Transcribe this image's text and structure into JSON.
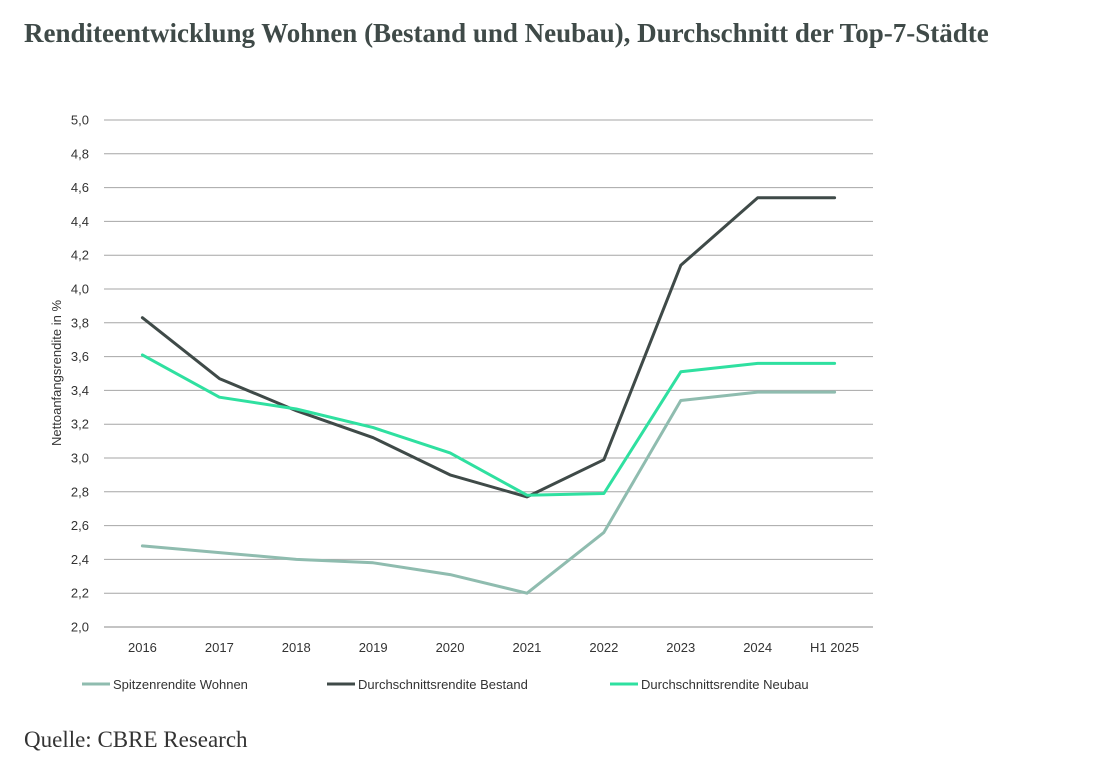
{
  "title": "Renditeentwicklung Wohnen (Bestand und Neubau), Durchschnitt der Top-7-Städte",
  "source": "Quelle: CBRE Research",
  "chart_data": {
    "type": "line",
    "title": "",
    "xlabel": "",
    "ylabel": "Nettoanfangsrendite in %",
    "ylim": [
      2.0,
      5.0
    ],
    "ytick_step": 0.2,
    "decimal_separator": ",",
    "grid": true,
    "legend_position": "bottom",
    "categories": [
      "2016",
      "2017",
      "2018",
      "2019",
      "2020",
      "2021",
      "2022",
      "2023",
      "2024",
      "H1 2025"
    ],
    "series": [
      {
        "name": "Spitzenrendite Wohnen",
        "color": "#8fbcaf",
        "values": [
          2.48,
          2.44,
          2.4,
          2.38,
          2.31,
          2.2,
          2.56,
          3.34,
          3.39,
          3.39
        ]
      },
      {
        "name": "Durchschnittsrendite Bestand",
        "color": "#3f4a48",
        "values": [
          3.83,
          3.47,
          3.28,
          3.12,
          2.9,
          2.77,
          2.99,
          4.14,
          4.54,
          4.54
        ]
      },
      {
        "name": "Durchschnittsrendite Neubau",
        "color": "#2fe0a0",
        "values": [
          3.61,
          3.36,
          3.29,
          3.18,
          3.03,
          2.78,
          2.79,
          3.51,
          3.56,
          3.56
        ]
      }
    ]
  }
}
